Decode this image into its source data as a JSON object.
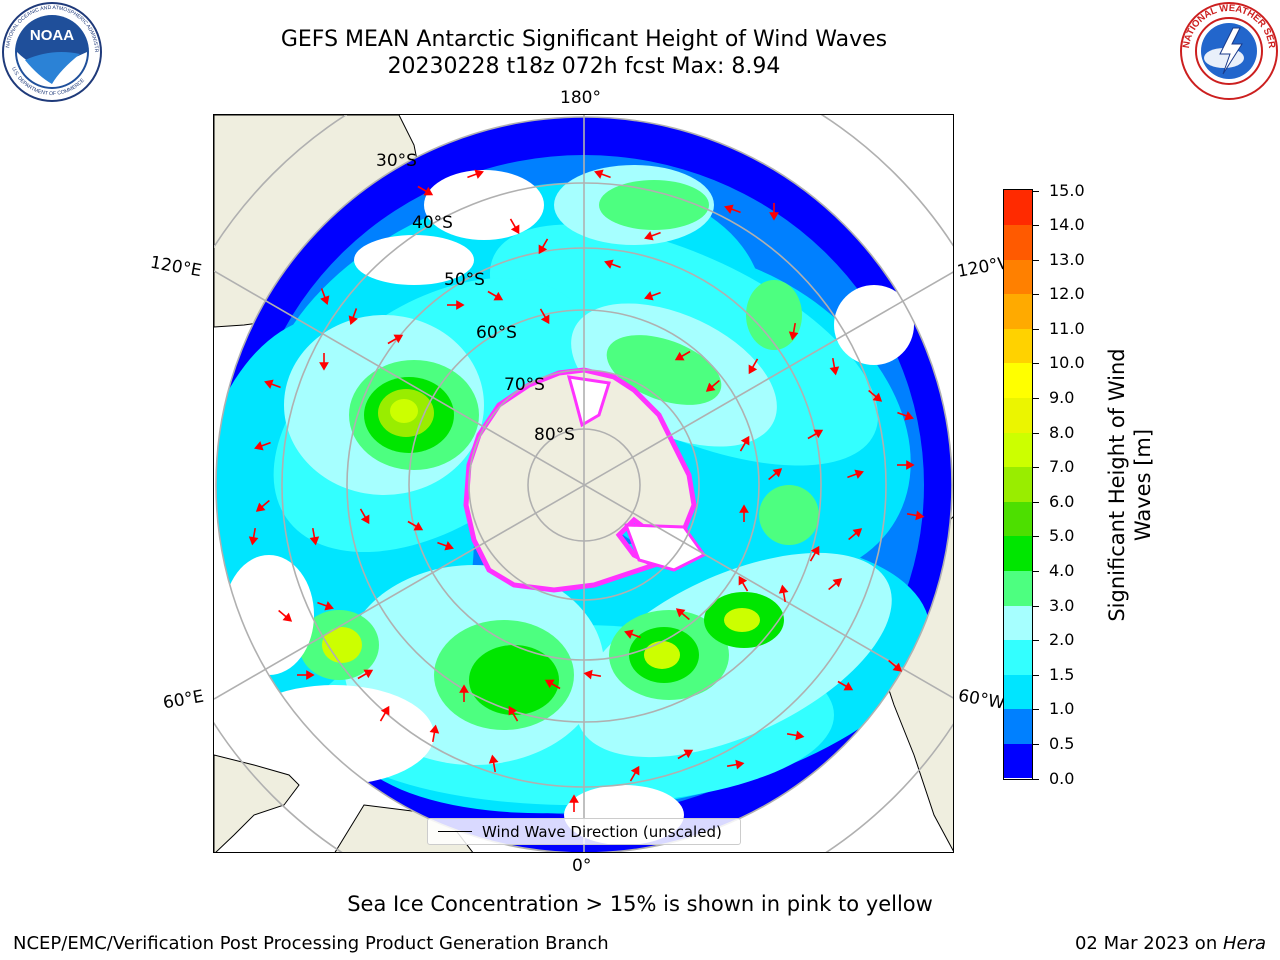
{
  "title": {
    "line1": "GEFS MEAN Antarctic Significant Height of Wind Waves",
    "line2": "20230228 t18z 072h fcst   Max: 8.94"
  },
  "logos": {
    "noaa_text": "NOAA",
    "noaa_ring": "NATIONAL OCEANIC AND ATMOSPHERIC ADMINISTRATION",
    "noaa_ring_bottom": "U.S. DEPARTMENT OF COMMERCE",
    "nws_ring": "NATIONAL WEATHER SERVICE"
  },
  "map": {
    "projection": "south polar stereographic",
    "longitude_labels": {
      "top": "180°",
      "bottom": "0°",
      "left_upper": "120°E",
      "left_lower": "60°E",
      "right_upper": "120°W",
      "right_lower": "60°W"
    },
    "latitude_labels": [
      "30°S",
      "40°S",
      "50°S",
      "60°S",
      "70°S",
      "80°S"
    ],
    "land_color": "#efeedf",
    "ocean_colors_note": "filled contours per colorbar",
    "sea_ice_color": "#ff33ff",
    "arrow_color": "#ff0000"
  },
  "legend": {
    "label": "Wind Wave Direction (unscaled)"
  },
  "colorbar": {
    "title_line1": "Significant Height of Wind",
    "title_line2": "Waves [m]",
    "ticks": [
      "0.0",
      "0.5",
      "1.0",
      "1.5",
      "2.0",
      "3.0",
      "4.0",
      "5.0",
      "6.0",
      "7.0",
      "8.0",
      "9.0",
      "10.0",
      "11.0",
      "12.0",
      "13.0",
      "14.0",
      "15.0"
    ],
    "colors": [
      "#0000ff",
      "#0080ff",
      "#00e5ff",
      "#33ffff",
      "#a6ffff",
      "#4dff80",
      "#00e600",
      "#4ddf00",
      "#99ed00",
      "#ccff00",
      "#ebf500",
      "#ffff00",
      "#ffd200",
      "#ffaa00",
      "#ff8000",
      "#ff5a00",
      "#ff2a00",
      "#ff0000"
    ],
    "units": "m",
    "min": 0,
    "max": 15
  },
  "caption": "Sea Ice Concentration > 15% is shown in pink to yellow",
  "footer": {
    "left": "NCEP/EMC/Verification Post Processing Product Generation Branch",
    "right_prefix": "02 Mar 2023 on ",
    "right_host": "Hera"
  }
}
